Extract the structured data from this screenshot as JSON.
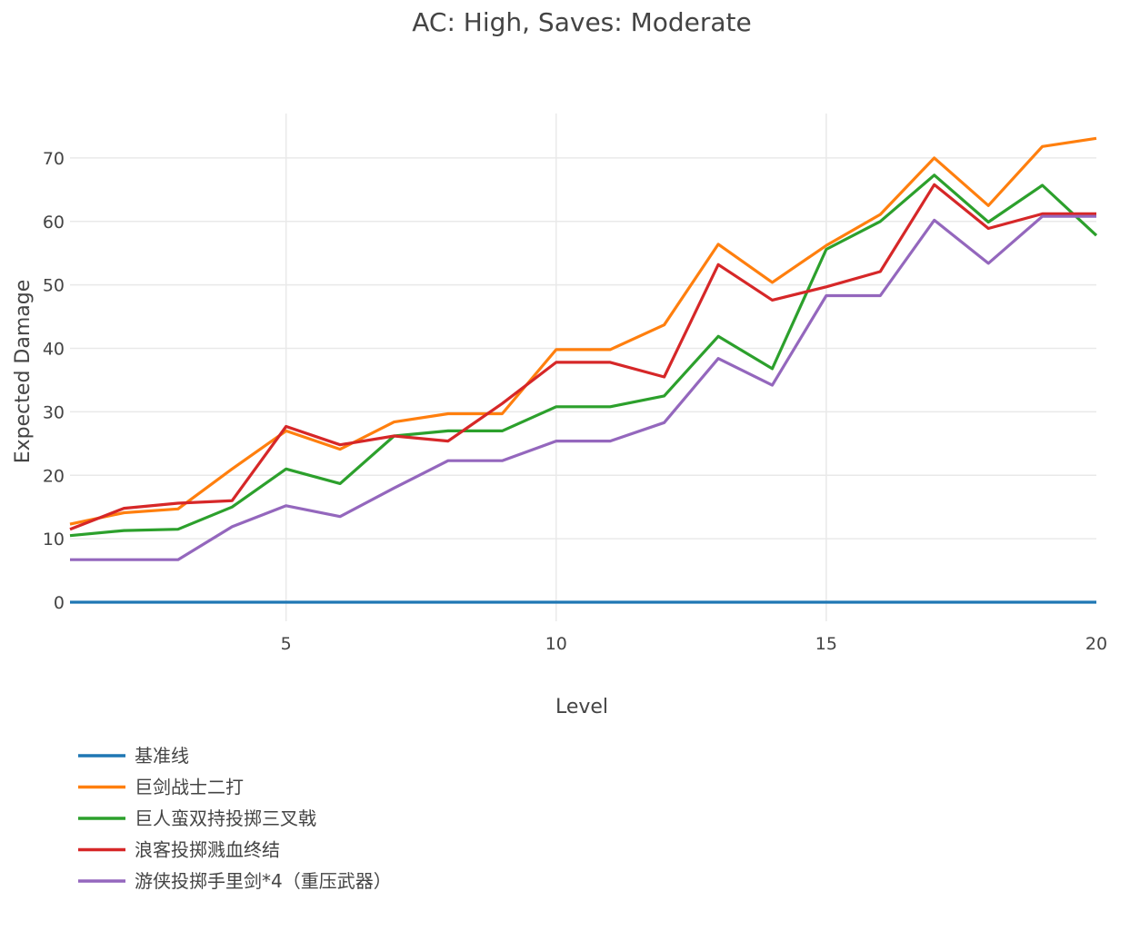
{
  "chart_data": {
    "type": "line",
    "title": "AC: High, Saves: Moderate",
    "xlabel": "Level",
    "ylabel": "Expected Damage",
    "xlim": [
      1,
      20
    ],
    "ylim": [
      -3,
      77
    ],
    "x_ticks": [
      5,
      10,
      15,
      20
    ],
    "y_ticks": [
      0,
      10,
      20,
      30,
      40,
      50,
      60,
      70
    ],
    "grid": true,
    "legend_position": "bottom-left",
    "x": [
      1,
      2,
      3,
      4,
      5,
      6,
      7,
      8,
      9,
      10,
      11,
      12,
      13,
      14,
      15,
      16,
      17,
      18,
      19,
      20
    ],
    "series": [
      {
        "name": "基准线",
        "color": "#1f77b4",
        "values": [
          0,
          0,
          0,
          0,
          0,
          0,
          0,
          0,
          0,
          0,
          0,
          0,
          0,
          0,
          0,
          0,
          0,
          0,
          0,
          0
        ]
      },
      {
        "name": "巨剑战士二打",
        "color": "#ff7f0e",
        "values": [
          12.3,
          14.1,
          14.7,
          21.0,
          27.0,
          24.1,
          28.4,
          29.7,
          29.7,
          39.8,
          39.8,
          43.7,
          56.4,
          50.4,
          56.2,
          61.1,
          70.0,
          62.5,
          71.8,
          73.1
        ]
      },
      {
        "name": "巨人蛮双持投掷三叉戟",
        "color": "#2ca02c",
        "values": [
          10.5,
          11.3,
          11.5,
          15.0,
          21.0,
          18.7,
          26.2,
          27.0,
          27.0,
          30.8,
          30.8,
          32.5,
          41.9,
          36.8,
          55.6,
          60.0,
          67.3,
          59.9,
          65.7,
          57.8
        ]
      },
      {
        "name": "浪客投掷溅血终结",
        "color": "#d62728",
        "values": [
          11.5,
          14.8,
          15.6,
          16.0,
          27.7,
          24.8,
          26.2,
          25.4,
          31.3,
          37.8,
          37.8,
          35.5,
          53.2,
          47.6,
          49.7,
          52.1,
          65.8,
          58.9,
          61.2,
          61.2
        ]
      },
      {
        "name": "游侠投掷手里剑*4（重压武器）",
        "color": "#9467bd",
        "values": [
          6.7,
          6.7,
          6.7,
          11.9,
          15.2,
          13.5,
          18.0,
          22.3,
          22.3,
          25.4,
          25.4,
          28.3,
          38.4,
          34.2,
          48.3,
          48.3,
          60.2,
          53.4,
          60.8,
          60.8
        ]
      }
    ]
  }
}
